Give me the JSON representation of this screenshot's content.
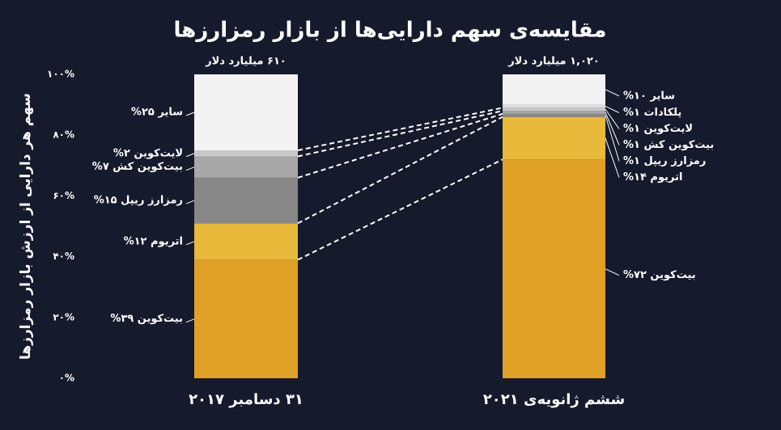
{
  "chart_data": {
    "type": "stacked_bar_100",
    "title": "مقایسه‌ی سهم دارایی‌ها از بازار رمزارزها",
    "y_label": "سهم هر دارایی از ارزش بازار رمزارزها",
    "categories": [
      "۳۱ دسامبر ۲۰۱۷",
      "ششم ژانویه‌ی ۲۰۲۱"
    ],
    "total_labels": [
      "۶۱۰ میلیارد دلار",
      "۱,۰۲۰ میلیارد دلار"
    ],
    "ylim": [
      0,
      100
    ],
    "yticks": [
      {
        "value": 0,
        "label": "۰%"
      },
      {
        "value": 20,
        "label": "۲۰%"
      },
      {
        "value": 40,
        "label": "۴۰%"
      },
      {
        "value": 60,
        "label": "۶۰%"
      },
      {
        "value": 80,
        "label": "۸۰%"
      },
      {
        "value": 100,
        "label": "۱۰۰%"
      }
    ],
    "series": [
      {
        "color": "#dfa126",
        "values": [
          39,
          72
        ],
        "value_labels": [
          "بیت‌کوین ۳۹%",
          "بیت‌کوین ۷۲%"
        ]
      },
      {
        "color": "#e9b93c",
        "values": [
          12,
          14
        ],
        "value_labels": [
          "اتریوم ۱۲%",
          "اتریوم ۱۴%"
        ]
      },
      {
        "color": "#878787",
        "values": [
          15,
          1
        ],
        "value_labels": [
          "رمزارز ریپل ۱۵%",
          "رمزارز ریپل ۱%"
        ]
      },
      {
        "color": "#a8a8a8",
        "values": [
          7,
          1
        ],
        "value_labels": [
          "بیت‌کوین کش ۷%",
          "بیت‌کوین کش ۱%"
        ]
      },
      {
        "color": "#c9c9c9",
        "values": [
          2,
          1
        ],
        "value_labels": [
          "لایت‌کوین ۲%",
          "لایت‌کوین ۱%"
        ]
      },
      {
        "color": "#dcdcdc",
        "values": [
          null,
          1
        ],
        "value_labels": [
          null,
          "پلکادات ۱%"
        ]
      },
      {
        "color": "#f3f3f4",
        "values": [
          25,
          10
        ],
        "value_labels": [
          "سایر ۲۵%",
          "سایر ۱۰%"
        ]
      }
    ]
  }
}
